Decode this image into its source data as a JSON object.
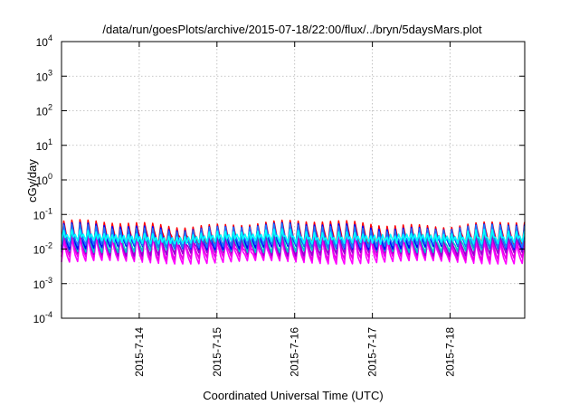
{
  "chart_data": {
    "type": "line",
    "title": "/data/run/goesPlots/archive/2015-07-18/22:00/flux/../bryn/5daysMars.plot",
    "xlabel": "Coordinated Universal Time (UTC)",
    "ylabel": "cGy/day",
    "yscale": "log",
    "ylim": [
      0.0001,
      10000
    ],
    "xlim_days": [
      13.0,
      18.96
    ],
    "grid": true,
    "x_ticks": [
      {
        "label": "2015-7-14",
        "day": 14
      },
      {
        "label": "2015-7-15",
        "day": 15
      },
      {
        "label": "2015-7-16",
        "day": 16
      },
      {
        "label": "2015-7-17",
        "day": 17
      },
      {
        "label": "2015-7-18",
        "day": 18
      }
    ],
    "y_ticks": [
      {
        "base": "10",
        "exp": "-4",
        "value": 0.0001
      },
      {
        "base": "10",
        "exp": "-3",
        "value": 0.001
      },
      {
        "base": "10",
        "exp": "-2",
        "value": 0.01
      },
      {
        "base": "10",
        "exp": "-1",
        "value": 0.1
      },
      {
        "base": "10",
        "exp": "0",
        "value": 1
      },
      {
        "base": "10",
        "exp": "1",
        "value": 10
      },
      {
        "base": "10",
        "exp": "2",
        "value": 100
      },
      {
        "base": "10",
        "exp": "3",
        "value": 1000
      },
      {
        "base": "10",
        "exp": "4",
        "value": 10000
      }
    ],
    "sawtooth_period_days": 0.104,
    "series": [
      {
        "color": "#ff00ff",
        "peak": 0.018,
        "trough": 0.0042
      },
      {
        "color": "#e600e6",
        "peak": 0.022,
        "trough": 0.0055
      },
      {
        "color": "#9400d3",
        "peak": 0.028,
        "trough": 0.0072
      },
      {
        "color": "#00c8c8",
        "peak": 0.034,
        "trough": 0.009
      },
      {
        "color": "#ff0000",
        "peak": 0.055,
        "trough": 0.013
      },
      {
        "color": "#0000ff",
        "peak": 0.046,
        "trough": 0.011
      },
      {
        "color": "#1e78ff",
        "peak": 0.042,
        "trough": 0.0125
      },
      {
        "color": "#00ffff",
        "peak": 0.03,
        "trough": 0.016
      }
    ]
  }
}
